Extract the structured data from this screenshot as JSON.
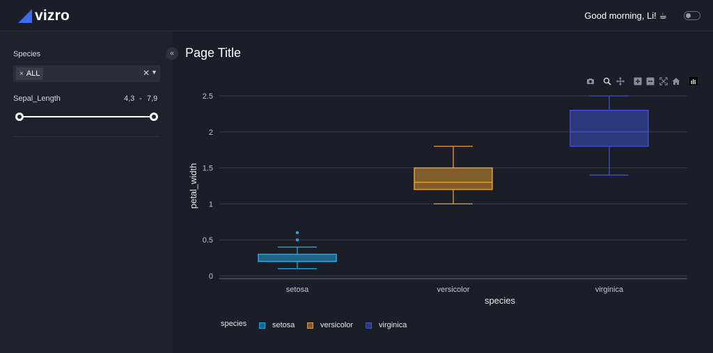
{
  "header": {
    "logo_text": "vizro",
    "greeting": "Good morning, Li! ☕"
  },
  "sidebar": {
    "species_label": "Species",
    "species_chip": "ALL",
    "sepal_label": "Sepal_Length",
    "sepal_min": "4,3",
    "sepal_max": "7,9",
    "range_separator": "-"
  },
  "page": {
    "title": "Page Title"
  },
  "colors": {
    "setosa": "#1ea7e1",
    "versicolor": "#e89b2f",
    "virginica": "#3f4fd0",
    "grid": "#3a3d48",
    "background": "#1b1e27"
  },
  "chart_data": {
    "type": "box",
    "xlabel": "species",
    "ylabel": "petal_width",
    "ylim": [
      -0.05,
      2.55
    ],
    "yticks": [
      0,
      0.5,
      1,
      1.5,
      2,
      2.5
    ],
    "ytick_labels": [
      "0",
      "0.5",
      "1",
      "1.5",
      "2",
      "2.5"
    ],
    "categories": [
      "setosa",
      "versicolor",
      "virginica"
    ],
    "legend_title": "species",
    "legend_position": "bottom-left",
    "grid": true,
    "series": [
      {
        "name": "setosa",
        "min": 0.1,
        "q1": 0.2,
        "median": 0.2,
        "q3": 0.3,
        "max": 0.4,
        "outliers": [
          0.5,
          0.6
        ]
      },
      {
        "name": "versicolor",
        "min": 1.0,
        "q1": 1.2,
        "median": 1.3,
        "q3": 1.5,
        "max": 1.8,
        "outliers": []
      },
      {
        "name": "virginica",
        "min": 1.4,
        "q1": 1.8,
        "median": 2.0,
        "q3": 2.3,
        "max": 2.5,
        "outliers": []
      }
    ]
  }
}
